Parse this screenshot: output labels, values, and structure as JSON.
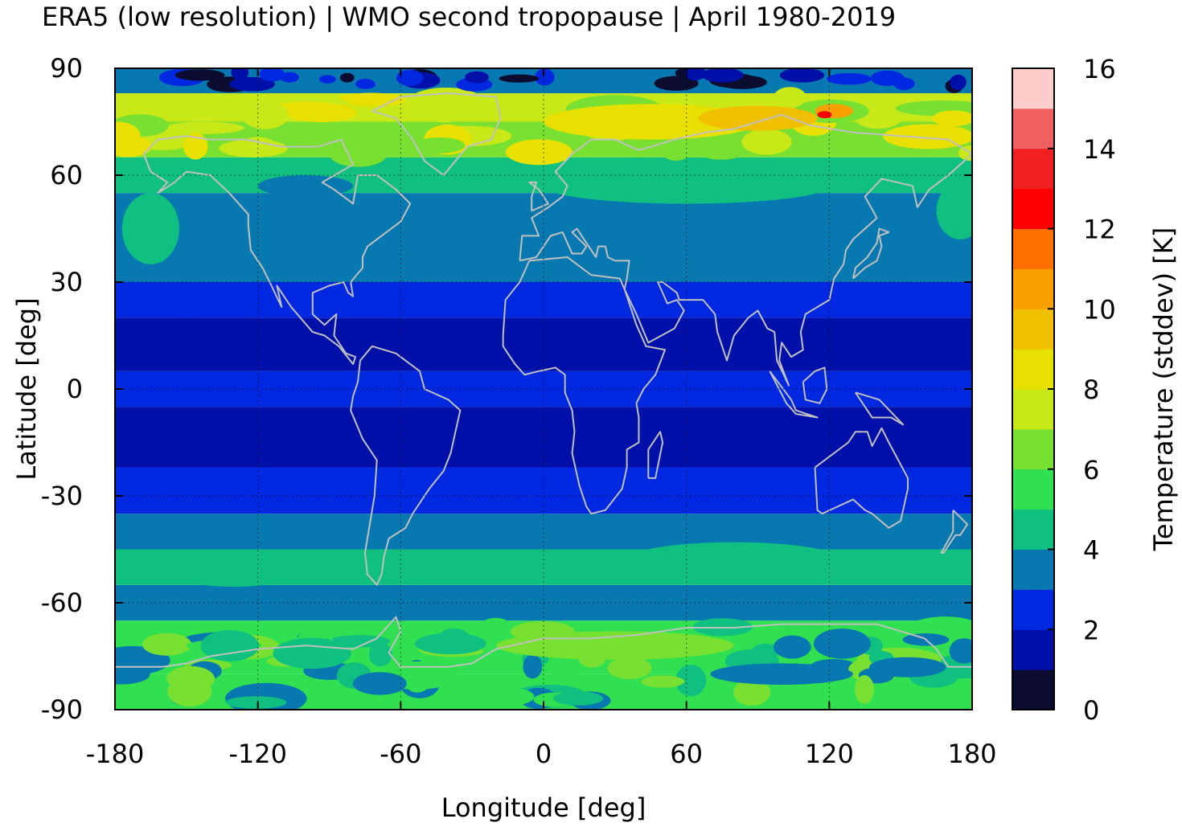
{
  "title": "ERA5 (low resolution) | WMO second tropopause | April 1980-2019",
  "chart_data": {
    "type": "heatmap",
    "title": "ERA5 (low resolution) | WMO second tropopause | April 1980-2019",
    "xlabel": "Longitude [deg]",
    "ylabel": "Latitude [deg]",
    "xlim": [
      -180,
      180
    ],
    "ylim": [
      -90,
      90
    ],
    "xticks": [
      "-180",
      "-120",
      "-60",
      "0",
      "60",
      "120",
      "180"
    ],
    "yticks": [
      "90",
      "60",
      "30",
      "0",
      "-30",
      "-60",
      "-90"
    ],
    "grid": true,
    "coastlines": true,
    "colorbar": {
      "label": "Temperature (stddev) [K]",
      "range": [
        0,
        16
      ],
      "ticks": [
        "0",
        "2",
        "4",
        "6",
        "8",
        "10",
        "12",
        "14",
        "16"
      ],
      "step": 1,
      "colors": [
        "#0c0c30",
        "#0010a8",
        "#0028e0",
        "#0878b0",
        "#10c080",
        "#30e050",
        "#78e030",
        "#c8e818",
        "#e8e000",
        "#f0c000",
        "#f8a000",
        "#ff7000",
        "#ff0000",
        "#f02020",
        "#f06060",
        "#ffcccc"
      ]
    },
    "zonal_pattern": [
      {
        "lat": [
          -90,
          -80
        ],
        "value": 5.6
      },
      {
        "lat": [
          -80,
          -65
        ],
        "value": 5.2
      },
      {
        "lat": [
          -65,
          -55
        ],
        "value": 3.6
      },
      {
        "lat": [
          -55,
          -45
        ],
        "value": 4.3
      },
      {
        "lat": [
          -45,
          -35
        ],
        "value": 3.7
      },
      {
        "lat": [
          -35,
          -22
        ],
        "value": 2.6
      },
      {
        "lat": [
          -22,
          -5
        ],
        "value": 1.6
      },
      {
        "lat": [
          -5,
          5
        ],
        "value": 2.3
      },
      {
        "lat": [
          5,
          20
        ],
        "value": 1.7
      },
      {
        "lat": [
          20,
          30
        ],
        "value": 2.5
      },
      {
        "lat": [
          30,
          45
        ],
        "value": 3.6
      },
      {
        "lat": [
          45,
          55
        ],
        "value": 3.8
      },
      {
        "lat": [
          55,
          65
        ],
        "value": 4.5
      },
      {
        "lat": [
          65,
          75
        ],
        "value": 6.4
      },
      {
        "lat": [
          75,
          83
        ],
        "value": 7.0
      },
      {
        "lat": [
          83,
          90
        ],
        "value": 3.5
      }
    ]
  }
}
